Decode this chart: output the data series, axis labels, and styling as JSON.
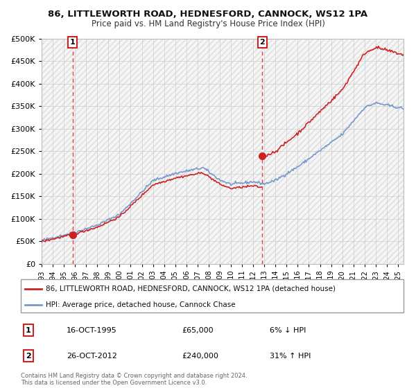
{
  "title_line1": "86, LITTLEWORTH ROAD, HEDNESFORD, CANNOCK, WS12 1PA",
  "title_line2": "Price paid vs. HM Land Registry's House Price Index (HPI)",
  "background_color": "#ffffff",
  "plot_bg_color": "#f5f5f5",
  "hpi_color": "#7799cc",
  "price_color": "#cc2222",
  "dashed_line_color": "#dd4444",
  "purchases": [
    {
      "date_year": 1995.79,
      "price": 65000,
      "label": "1"
    },
    {
      "date_year": 2012.81,
      "price": 240000,
      "label": "2"
    }
  ],
  "legend_entry1": "86, LITTLEWORTH ROAD, HEDNESFORD, CANNOCK, WS12 1PA (detached house)",
  "legend_entry2": "HPI: Average price, detached house, Cannock Chase",
  "ann1_label": "1",
  "ann1_date": "16-OCT-1995",
  "ann1_price": "£65,000",
  "ann1_hpi": "6% ↓ HPI",
  "ann2_label": "2",
  "ann2_date": "26-OCT-2012",
  "ann2_price": "£240,000",
  "ann2_hpi": "31% ↑ HPI",
  "footnote": "Contains HM Land Registry data © Crown copyright and database right 2024.\nThis data is licensed under the Open Government Licence v3.0.",
  "ylim": [
    0,
    500000
  ],
  "yticks": [
    0,
    50000,
    100000,
    150000,
    200000,
    250000,
    300000,
    350000,
    400000,
    450000,
    500000
  ],
  "xlim_start": 1993.0,
  "xlim_end": 2025.5
}
